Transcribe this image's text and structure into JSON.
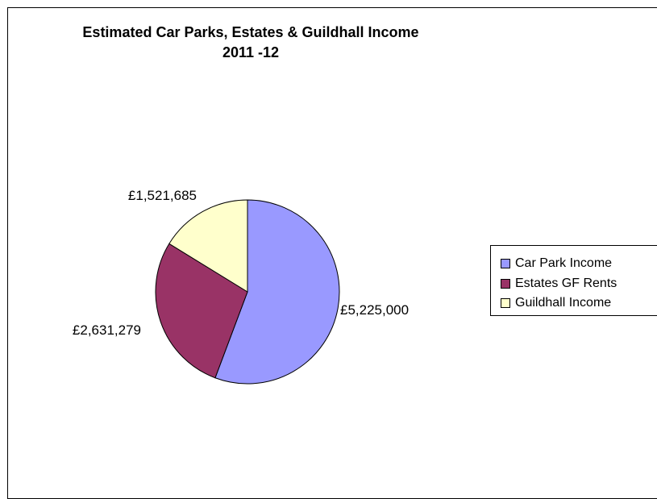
{
  "chart_data": {
    "type": "pie",
    "title": "Estimated Car Parks, Estates & Guildhall Income",
    "subtitle": "2011 -12",
    "categories": [
      "Car Park Income",
      "Estates GF Rents",
      "Guildhall Income"
    ],
    "values": [
      5225000,
      2631279,
      1521685
    ],
    "data_labels": [
      "£5,225,000",
      "£2,631,279",
      "£1,521,685"
    ],
    "colors": [
      "#9999FF",
      "#993366",
      "#FFFFCC"
    ],
    "legend": {
      "position": "right",
      "entries": [
        "Car Park Income",
        "Estates GF Rents",
        "Guildhall Income"
      ]
    }
  }
}
